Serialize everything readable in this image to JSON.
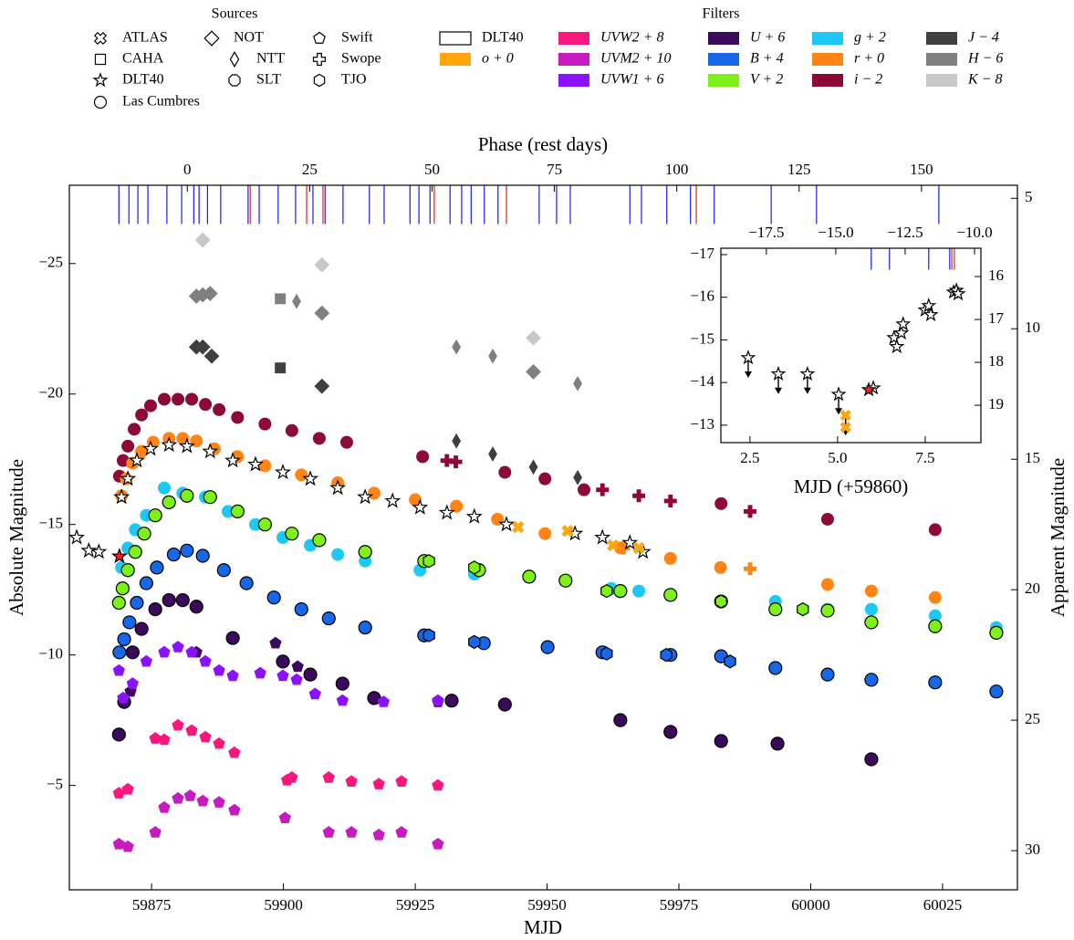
{
  "chart_data": {
    "type": "scatter",
    "x_label": "MJD",
    "y_label": "Absolute Magnitude",
    "y2_label": "Apparent Magnitude",
    "top_label": "Phase (rest days)",
    "xlim": [
      59859.4,
      60039.2
    ],
    "xticks": [
      59875,
      59900,
      59925,
      59950,
      59975,
      60000,
      60025
    ],
    "ylim": [
      -1.0,
      -28.0
    ],
    "yticks": [
      {
        "value": -25,
        "label": "−25"
      },
      {
        "value": -20,
        "label": "−20"
      },
      {
        "value": -15,
        "label": "−15"
      },
      {
        "value": -10,
        "label": "−10"
      },
      {
        "value": -5,
        "label": "−5"
      }
    ],
    "y2lim": [
      31.5,
      4.5
    ],
    "y2ticks": [
      5,
      10,
      15,
      20,
      25,
      30
    ],
    "top_xlim": [
      -24.1,
      169.6
    ],
    "top_xticks": [
      0,
      25,
      50,
      75,
      100,
      125,
      150
    ],
    "legend_sources_title": "Sources",
    "legend_filters_title": "Filters",
    "sources": [
      {
        "name": "ATLAS",
        "marker": "cross"
      },
      {
        "name": "CAHA",
        "marker": "square"
      },
      {
        "name": "DLT40",
        "marker": "star"
      },
      {
        "name": "Las Cumbres",
        "marker": "circle"
      },
      {
        "name": "NOT",
        "marker": "diamond"
      },
      {
        "name": "NTT",
        "marker": "thin_diamond"
      },
      {
        "name": "SLT",
        "marker": "octagon"
      },
      {
        "name": "Swift",
        "marker": "pentagon"
      },
      {
        "name": "Swope",
        "marker": "plus"
      },
      {
        "name": "TJO",
        "marker": "hexagon"
      }
    ],
    "filters": [
      {
        "name": "DLT40",
        "color": "#ffffff"
      },
      {
        "name": "o + 0",
        "color": "#ffa50d"
      },
      {
        "name": "UVW2 + 8",
        "color": "#f7177d"
      },
      {
        "name": "UVM2 + 10",
        "color": "#c51bbf"
      },
      {
        "name": "UVW1 + 6",
        "color": "#8c12ff"
      },
      {
        "name": "U + 6",
        "color": "#3b0a5c"
      },
      {
        "name": "B + 4",
        "color": "#1767e8"
      },
      {
        "name": "V + 2",
        "color": "#7ff019"
      },
      {
        "name": "g + 2",
        "color": "#1ec8f4"
      },
      {
        "name": "r + 0",
        "color": "#ff8416"
      },
      {
        "name": "i − 2",
        "color": "#8e0a36"
      },
      {
        "name": "J − 4",
        "color": "#3f3f3f"
      },
      {
        "name": "H − 6",
        "color": "#808080"
      },
      {
        "name": "K − 8",
        "color": "#c8c8c8"
      }
    ],
    "epochs": [
      {
        "color": "#1a1aff",
        "x": [
          59868.8,
          59870.7,
          59872.4,
          59874.3,
          59877.9,
          59880.7,
          59883.0,
          59884.0,
          59885.6,
          59888.1,
          59893.3,
          59895.4,
          59899.0,
          59902.3,
          59905.6,
          59907.9,
          59911.3,
          59916.3,
          59919.1,
          59924.0,
          59925.7,
          59927.8,
          59931.6,
          59933.8,
          59935.6,
          59938.1,
          59940.7,
          59948.5,
          59951.8,
          59954.4,
          59965.7,
          59967.9,
          59972.7,
          59977.2,
          59981.7,
          59992.5,
          60001.1,
          60024.3
        ]
      },
      {
        "color": "#e8201a",
        "x": [
          59893.7,
          59904.4,
          59907.5,
          59928.6,
          59942.3,
          59978.3
        ]
      }
    ],
    "series": [
      {
        "filter": 10,
        "source": 3,
        "x": [
          59868.9,
          59869.6,
          59870.5,
          59871.7,
          59873.1,
          59874.8,
          59877.4,
          59880.0,
          59882.6,
          59885.2,
          59887.8,
          59891.3,
          59896.5,
          59901.6,
          59906.8,
          59912.0,
          59926.4,
          59942.0,
          59949.6,
          59957.0,
          59983.0,
          60003.2,
          60023.6
        ],
        "values": [
          -16.85,
          -17.45,
          -18.0,
          -18.65,
          -19.2,
          -19.55,
          -19.8,
          -19.8,
          -19.8,
          -19.6,
          -19.4,
          -19.1,
          -18.85,
          -18.6,
          -18.3,
          -18.15,
          -17.6,
          -17.0,
          -16.75,
          -16.33,
          -15.8,
          -15.2,
          -14.8
        ]
      },
      {
        "filter": 10,
        "source": 8,
        "x": [
          59931.0,
          59932.7,
          59960.5,
          59967.4,
          59973.4,
          59988.5
        ],
        "values": [
          -17.45,
          -17.4,
          -16.33,
          -16.1,
          -15.9,
          -15.5
        ]
      },
      {
        "filter": 9,
        "source": 3,
        "x": [
          59869.3,
          59870.2,
          59871.4,
          59873.1,
          59875.3,
          59878.3,
          59880.9,
          59883.5,
          59886.9,
          59891.3,
          59896.5,
          59903.4,
          59910.3,
          59917.2,
          59925.0,
          59932.8,
          59940.6,
          59949.6,
          59963.9,
          59973.4,
          59982.9,
          60003.2,
          60011.5,
          60023.6
        ],
        "values": [
          -16.1,
          -16.75,
          -17.35,
          -17.8,
          -18.15,
          -18.3,
          -18.3,
          -18.2,
          -17.9,
          -17.6,
          -17.25,
          -16.9,
          -16.6,
          -16.2,
          -15.95,
          -15.7,
          -15.2,
          -14.65,
          -14.1,
          -13.7,
          -13.35,
          -12.7,
          -12.45,
          -12.2
        ]
      },
      {
        "filter": 9,
        "source": 8,
        "x": [
          59964.5,
          59988.5
        ],
        "values": [
          -14.1,
          -13.3
        ]
      },
      {
        "filter": 0,
        "source": 2,
        "edgecolor": "#000000",
        "x": [
          59860.8,
          59863.1,
          59865.0,
          59869.3,
          59870.5,
          59872.2,
          59874.8,
          59878.3,
          59881.7,
          59886.1,
          59890.4,
          59894.7,
          59899.9,
          59905.1,
          59910.3,
          59915.5,
          59920.7,
          59925.9,
          59931.0,
          59936.2,
          59942.3,
          59955.3,
          59960.5,
          59965.7,
          59968.2
        ],
        "values": [
          -14.5,
          -14.0,
          -13.95,
          -16.05,
          -16.75,
          -17.45,
          -17.9,
          -18.05,
          -18.0,
          -17.8,
          -17.45,
          -17.3,
          -17.0,
          -16.75,
          -16.4,
          -16.05,
          -15.9,
          -15.65,
          -15.45,
          -15.3,
          -15.0,
          -14.65,
          -14.5,
          -14.3,
          -13.95
        ]
      },
      {
        "filter": 1,
        "source": 0,
        "x": [
          59944.5,
          59953.9,
          59962.5,
          59967.4
        ],
        "values": [
          -14.9,
          -14.75,
          -14.2,
          -14.1
        ]
      },
      {
        "filter": 8,
        "source": 3,
        "x": [
          59869.3,
          59870.5,
          59871.9,
          59874.0,
          59877.4,
          59880.9,
          59885.2,
          59889.5,
          59894.7,
          59899.9,
          59905.1,
          59910.3,
          59915.5,
          59925.9,
          59936.2,
          59946.6,
          59962.2,
          59967.4,
          59983.0,
          59993.3,
          60003.2,
          60011.5,
          60023.6,
          60035.2
        ],
        "values": [
          -13.35,
          -14.1,
          -14.8,
          -15.35,
          -16.4,
          -16.2,
          -16.05,
          -15.5,
          -15.0,
          -14.5,
          -14.2,
          -13.85,
          -13.6,
          -13.25,
          -13.1,
          -13.0,
          -12.55,
          -12.45,
          -12.05,
          -12.05,
          -11.75,
          -11.75,
          -11.5,
          -11.05
        ]
      },
      {
        "filter": 7,
        "source": 3,
        "edgecolor": "#000000",
        "x": [
          59868.8,
          59869.5,
          59870.5,
          59871.9,
          59873.6,
          59875.7,
          59878.3,
          59881.7,
          59886.1,
          59891.3,
          59896.5,
          59901.6,
          59906.8,
          59915.5,
          59926.7,
          59937.1,
          59946.6,
          59953.5,
          59963.9,
          59973.4,
          59983.0,
          59993.3,
          60003.2,
          60011.5,
          60023.6,
          60035.2
        ],
        "values": [
          -12.0,
          -12.55,
          -13.25,
          -13.95,
          -14.65,
          -15.35,
          -15.85,
          -16.1,
          -16.05,
          -15.5,
          -15.0,
          -14.65,
          -14.4,
          -13.95,
          -13.6,
          -13.25,
          -13.0,
          -12.85,
          -12.45,
          -12.3,
          -12.05,
          -11.75,
          -11.7,
          -11.25,
          -11.1,
          -10.85
        ]
      },
      {
        "filter": 7,
        "source": 9,
        "edgecolor": "#000000",
        "x": [
          59927.6,
          59936.2,
          59961.3,
          59983.0,
          59998.5
        ],
        "values": [
          -13.6,
          -13.35,
          -12.45,
          -12.05,
          -11.75
        ]
      },
      {
        "filter": 6,
        "source": 3,
        "edgecolor": "#000000",
        "x": [
          59868.9,
          59869.8,
          59870.8,
          59872.2,
          59874.0,
          59876.0,
          59879.2,
          59881.7,
          59884.7,
          59888.7,
          59893.0,
          59898.2,
          59903.4,
          59908.6,
          59915.5,
          59926.7,
          59938.0,
          59950.1,
          59960.5,
          59973.4,
          59983.0,
          59993.3,
          60003.2,
          60011.5,
          60023.6,
          60035.2
        ],
        "values": [
          -10.1,
          -10.6,
          -11.25,
          -12.0,
          -12.75,
          -13.35,
          -13.85,
          -14.0,
          -13.8,
          -13.25,
          -12.75,
          -12.2,
          -11.75,
          -11.4,
          -11.05,
          -10.75,
          -10.45,
          -10.3,
          -10.1,
          -10.0,
          -9.95,
          -9.5,
          -9.25,
          -9.05,
          -8.95,
          -8.6
        ]
      },
      {
        "filter": 6,
        "source": 9,
        "edgecolor": "#000000",
        "x": [
          59927.6,
          59936.2,
          59961.3,
          59972.6,
          59984.7
        ],
        "values": [
          -10.75,
          -10.5,
          -10.05,
          -10.0,
          -9.75
        ]
      },
      {
        "filter": 5,
        "source": 3,
        "edgecolor": "#000000",
        "x": [
          59868.8,
          59869.8,
          59871.4,
          59873.1,
          59875.7,
          59878.3,
          59880.9,
          59883.5,
          59890.4,
          59899.9,
          59905.1,
          59911.2,
          59917.2,
          59931.9,
          59942.0,
          59963.9,
          59973.4,
          59983.0,
          59993.7,
          60011.5
        ],
        "values": [
          -6.95,
          -8.2,
          -10.1,
          -11.0,
          -11.75,
          -12.1,
          -12.1,
          -11.85,
          -10.65,
          -9.75,
          -9.25,
          -8.9,
          -8.35,
          -8.25,
          -8.1,
          -7.5,
          -7.05,
          -6.7,
          -6.6,
          -6.0
        ]
      },
      {
        "filter": 5,
        "source": 7,
        "x": [
          59871.0,
          59883.5,
          59898.5,
          59902.7,
          59929.3
        ],
        "values": [
          -8.6,
          -10.1,
          -10.45,
          -9.55,
          -8.2
        ]
      },
      {
        "filter": 4,
        "source": 7,
        "x": [
          59868.8,
          59869.6,
          59871.4,
          59874.0,
          59877.4,
          59880.0,
          59882.6,
          59885.2,
          59887.8,
          59890.4,
          59895.6,
          59899.9,
          59902.5,
          59906.0,
          59911.2,
          59919.0,
          59929.3
        ],
        "values": [
          -9.4,
          -8.35,
          -8.9,
          -9.75,
          -10.1,
          -10.3,
          -10.1,
          -9.75,
          -9.4,
          -9.2,
          -9.3,
          -9.2,
          -9.05,
          -8.5,
          -8.25,
          -8.2,
          -8.25
        ]
      },
      {
        "filter": 2,
        "source": 7,
        "x": [
          59868.8,
          59870.5,
          59875.7,
          59877.4,
          59880.0,
          59882.6,
          59885.2,
          59887.8,
          59890.7,
          59900.7,
          59901.6,
          59908.6,
          59912.9,
          59918.1,
          59922.4,
          59929.3
        ],
        "values": [
          -4.7,
          -4.85,
          -6.8,
          -6.75,
          -7.3,
          -7.1,
          -6.85,
          -6.6,
          -6.25,
          -5.2,
          -5.3,
          -5.3,
          -5.15,
          -5.05,
          -5.15,
          -5.0
        ]
      },
      {
        "filter": 3,
        "source": 7,
        "x": [
          59868.8,
          59870.5,
          59875.7,
          59877.4,
          59880.0,
          59882.3,
          59884.7,
          59887.8,
          59890.7,
          59900.3,
          59908.6,
          59912.9,
          59918.1,
          59922.4,
          59929.3
        ],
        "values": [
          -2.75,
          -2.65,
          -3.2,
          -4.15,
          -4.5,
          -4.6,
          -4.4,
          -4.35,
          -4.05,
          -3.75,
          -3.2,
          -3.2,
          -3.1,
          -3.2,
          -2.75
        ]
      },
      {
        "filter": 11,
        "source": 4,
        "x": [
          59883.5,
          59884.7,
          59886.4,
          59907.3
        ],
        "values": [
          -21.8,
          -21.8,
          -21.45,
          -20.3
        ]
      },
      {
        "filter": 11,
        "source": 5,
        "x": [
          59932.8,
          59939.7,
          59947.4,
          59955.8
        ],
        "values": [
          -18.2,
          -17.7,
          -17.2,
          -16.8
        ]
      },
      {
        "filter": 11,
        "source": 1,
        "x": [
          59899.4
        ],
        "values": [
          -21.0
        ]
      },
      {
        "filter": 12,
        "source": 4,
        "x": [
          59883.5,
          59884.7,
          59886.1,
          59907.3,
          59947.4
        ],
        "values": [
          -23.75,
          -23.8,
          -23.85,
          -23.1,
          -20.85
        ]
      },
      {
        "filter": 12,
        "source": 5,
        "x": [
          59902.5,
          59932.8,
          59939.7,
          59955.8
        ],
        "values": [
          -23.55,
          -21.8,
          -21.45,
          -20.4
        ]
      },
      {
        "filter": 12,
        "source": 1,
        "x": [
          59899.4
        ],
        "values": [
          -23.65
        ]
      },
      {
        "filter": 13,
        "source": 4,
        "x": [
          59884.7,
          59907.3,
          59947.4
        ],
        "values": [
          -25.9,
          -24.95,
          -22.15
        ]
      }
    ],
    "highlight": {
      "color": "#ff2020",
      "marker": "star",
      "x": [
        59868.9
      ],
      "values": [
        -13.78
      ]
    },
    "inset": {
      "x_label": "MJD (+59860)",
      "xlim": [
        1.67,
        9.09
      ],
      "xticks": [
        2.5,
        {
          "value": 5.0,
          "label": "5.0"
        },
        7.5
      ],
      "ylim": [
        -12.59,
        -17.15
      ],
      "yticks": [
        {
          "value": -17,
          "label": "−17"
        },
        {
          "value": -16,
          "label": "−16"
        },
        {
          "value": -15,
          "label": "−15"
        },
        {
          "value": -14,
          "label": "−14"
        },
        {
          "value": -13,
          "label": "−13"
        }
      ],
      "y2lim": [
        19.87,
        15.34
      ],
      "y2ticks": [
        16,
        17,
        18,
        19
      ],
      "top_xlim": [
        -19.14,
        -9.77
      ],
      "top_xticks": [
        {
          "value": -17.5,
          "label": "−17.5"
        },
        {
          "value": -15.0,
          "label": "−15.0"
        },
        {
          "value": -12.5,
          "label": "−12.5"
        },
        {
          "value": -10.0,
          "label": "−10.0"
        }
      ],
      "epochs": [
        {
          "color": "#1a1aff",
          "x": [
            5.96,
            6.48,
            7.6,
            8.2
          ]
        },
        {
          "color": "#e8201a",
          "x": [
            8.26,
            8.33
          ]
        }
      ],
      "series": [
        {
          "filter": 0,
          "source": 2,
          "edgecolor": "#000000",
          "x": [
            2.45,
            3.31,
            4.14,
            5.03,
            6.02,
            6.61,
            6.69,
            6.82,
            6.87,
            7.5,
            7.6,
            7.66,
            8.31,
            8.39,
            8.44
          ],
          "values": [
            -14.58,
            -14.2,
            -14.2,
            -13.72,
            -13.87,
            -15.05,
            -14.84,
            -15.16,
            -15.37,
            -15.7,
            -15.8,
            -15.59,
            -16.12,
            -16.16,
            -16.08
          ],
          "limits": [
            true,
            true,
            true,
            true,
            false,
            false,
            false,
            false,
            false,
            false,
            false,
            false,
            false,
            false,
            false
          ]
        },
        {
          "filter": 1,
          "source": 0,
          "x": [
            5.23,
            5.23
          ],
          "values": [
            -13.23,
            -12.95
          ],
          "limits": [
            true,
            false
          ]
        }
      ],
      "highlight": {
        "color": "#ff2020",
        "marker": "star",
        "x": [
          5.89
        ],
        "values": [
          -13.83
        ]
      }
    }
  }
}
